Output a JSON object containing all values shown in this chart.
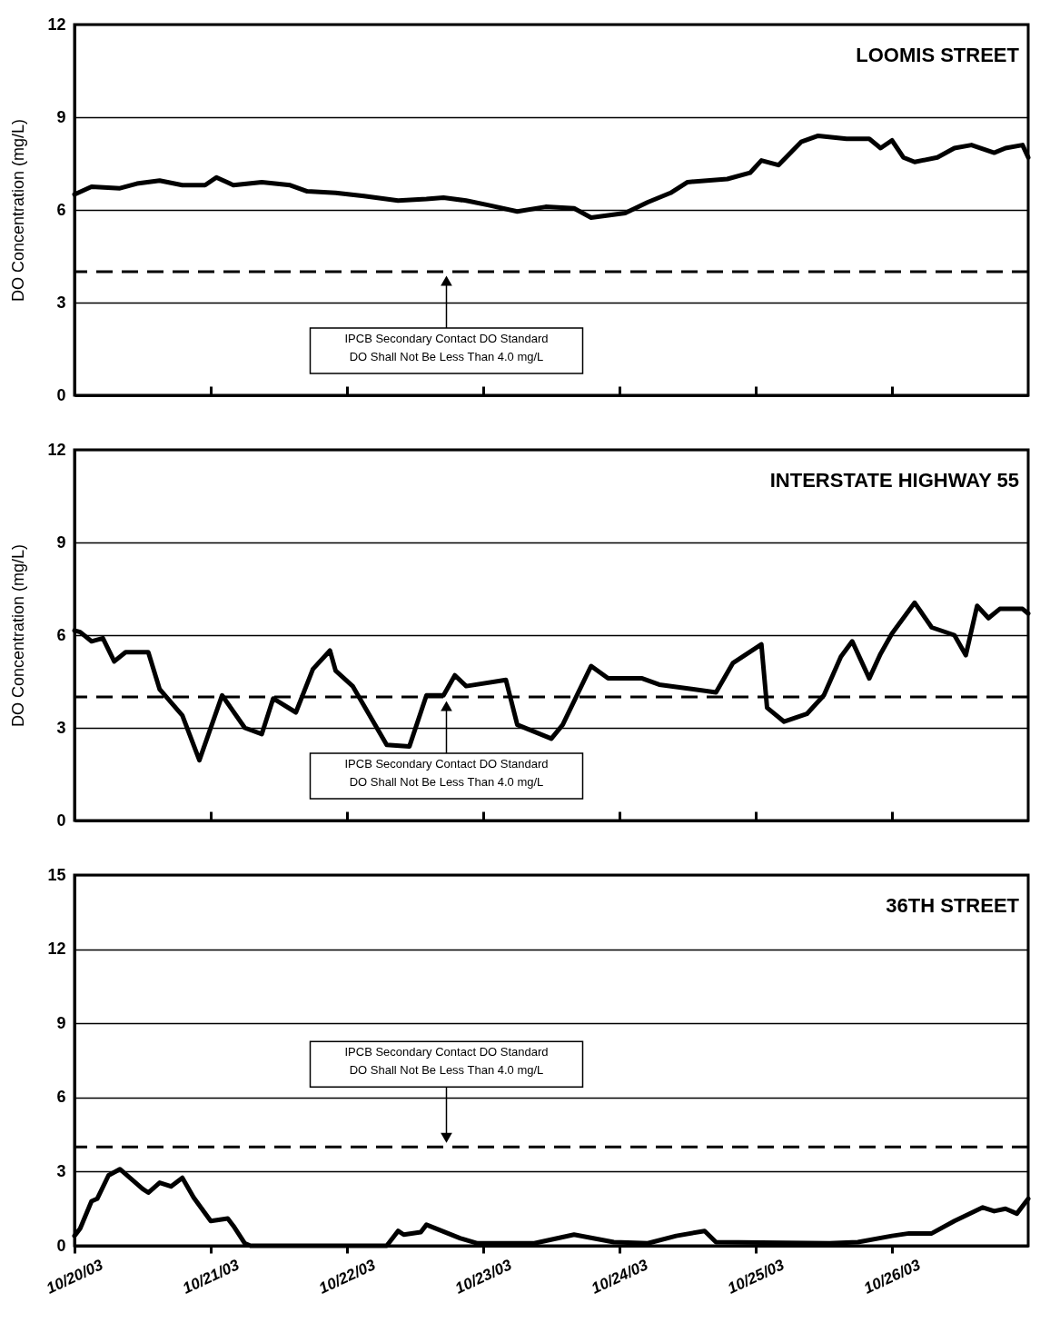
{
  "chart_data": [
    {
      "type": "line",
      "title": "LOOMIS STREET",
      "ylabel": "DO Concentration (mg/L)",
      "xlim": [
        "--10-20",
        "--10-27"
      ],
      "xticks": [
        {
          "value": "--10-20",
          "label": null
        },
        {
          "value": "--10-21",
          "label": null
        },
        {
          "value": "--10-22",
          "label": null
        },
        {
          "value": "--10-23",
          "label": null
        },
        {
          "value": "--10-24",
          "label": null
        },
        {
          "value": "--10-25",
          "label": null
        },
        {
          "value": "--10-26",
          "label": null
        }
      ],
      "ylim": [
        0,
        12
      ],
      "yticks": [
        0,
        3,
        6,
        9,
        12
      ],
      "grid": "y",
      "tick_labels": "y",
      "x": [
        "--10-20T00:00",
        "--10-20T03:00",
        "--10-20T08:00",
        "--10-20T11:00",
        "--10-20T15:00",
        "--10-20T19:00",
        "--10-20T23:00",
        "--10-21T01:00",
        "--10-21T04:00",
        "--10-21T09:00",
        "--10-21T14:00",
        "--10-21T17:00",
        "--10-21T22:00",
        "--10-22T03:00",
        "--10-22T09:00",
        "--10-22T14:00",
        "--10-22T17:00",
        "--10-22T21:00",
        "--10-23T01:00",
        "--10-23T06:00",
        "--10-23T11:00",
        "--10-23T16:00",
        "--10-23T19:00",
        "--10-24T01:00",
        "--10-24T05:00",
        "--10-24T09:00",
        "--10-24T12:00",
        "--10-24T19:00",
        "--10-24T23:00",
        "--10-25T01:00",
        "--10-25T04:00",
        "--10-25T08:00",
        "--10-25T11:00",
        "--10-25T16:00",
        "--10-25T20:00",
        "--10-25T22:00",
        "--10-26T00:00",
        "--10-26T02:00",
        "--10-26T04:00",
        "--10-26T08:00",
        "--10-26T11:00",
        "--10-26T14:00",
        "--10-26T18:00",
        "--10-26T20:00",
        "--10-26T23:00",
        "--10-27T00:00"
      ],
      "series": [
        {
          "color": "#000000",
          "values": [
            6.5,
            6.75,
            6.7,
            6.85,
            6.95,
            6.8,
            6.8,
            7.05,
            6.8,
            6.9,
            6.8,
            6.6,
            6.55,
            6.45,
            6.3,
            6.35,
            6.4,
            6.3,
            6.15,
            5.95,
            6.1,
            6.05,
            5.75,
            5.9,
            6.25,
            6.55,
            6.9,
            7.0,
            7.2,
            7.6,
            7.45,
            8.2,
            8.4,
            8.3,
            8.3,
            8.0,
            8.25,
            7.7,
            7.55,
            7.7,
            8.0,
            8.1,
            7.85,
            8.0,
            8.1,
            7.7
          ]
        }
      ],
      "ref_lines": [
        {
          "axis": "y",
          "value": 4,
          "label": "IPCB Secondary Contact DO Standard\nDO Shall Not Be Less Than 4.0 mg/L",
          "color": "#000000",
          "line_style": "dashed"
        }
      ]
    },
    {
      "type": "line",
      "title": "INTERSTATE HIGHWAY 55",
      "ylabel": "DO Concentration (mg/L)",
      "xlim": [
        "--10-20",
        "--10-27"
      ],
      "xticks": [
        {
          "value": "--10-20",
          "label": null
        },
        {
          "value": "--10-21",
          "label": null
        },
        {
          "value": "--10-22",
          "label": null
        },
        {
          "value": "--10-23",
          "label": null
        },
        {
          "value": "--10-24",
          "label": null
        },
        {
          "value": "--10-25",
          "label": null
        },
        {
          "value": "--10-26",
          "label": null
        }
      ],
      "ylim": [
        0,
        12
      ],
      "yticks": [
        0,
        3,
        6,
        9,
        12
      ],
      "grid": "y",
      "tick_labels": "y",
      "x": [
        "--10-20T00:00",
        "--10-20T01:00",
        "--10-20T03:00",
        "--10-20T05:00",
        "--10-20T07:00",
        "--10-20T09:00",
        "--10-20T13:00",
        "--10-20T15:00",
        "--10-20T19:00",
        "--10-20T22:00",
        "--10-21T02:00",
        "--10-21T06:00",
        "--10-21T09:00",
        "--10-21T11:00",
        "--10-21T15:00",
        "--10-21T18:00",
        "--10-21T21:00",
        "--10-21T22:00",
        "--10-22T01:00",
        "--10-22T07:00",
        "--10-22T11:00",
        "--10-22T14:00",
        "--10-22T17:00",
        "--10-22T19:00",
        "--10-22T21:00",
        "--10-23T04:00",
        "--10-23T06:00",
        "--10-23T12:00",
        "--10-23T14:00",
        "--10-23T19:00",
        "--10-23T22:00",
        "--10-24T04:00",
        "--10-24T07:00",
        "--10-24T13:00",
        "--10-24T17:00",
        "--10-24T20:00",
        "--10-25T01:00",
        "--10-25T02:00",
        "--10-25T05:00",
        "--10-25T09:00",
        "--10-25T12:00",
        "--10-25T15:00",
        "--10-25T17:00",
        "--10-25T20:00",
        "--10-25T22:00",
        "--10-26T00:00",
        "--10-26T04:00",
        "--10-26T07:00",
        "--10-26T11:00",
        "--10-26T13:00",
        "--10-26T15:00",
        "--10-26T17:00",
        "--10-26T19:00",
        "--10-26T23:00",
        "--10-27T00:00"
      ],
      "series": [
        {
          "color": "#000000",
          "values": [
            6.15,
            6.1,
            5.8,
            5.9,
            5.15,
            5.45,
            5.45,
            4.25,
            3.4,
            1.95,
            4.05,
            3.0,
            2.8,
            3.95,
            3.5,
            4.9,
            5.5,
            4.85,
            4.35,
            2.45,
            2.4,
            4.05,
            4.05,
            4.7,
            4.35,
            4.55,
            3.1,
            2.65,
            3.1,
            5.0,
            4.6,
            4.6,
            4.4,
            4.25,
            4.15,
            5.1,
            5.7,
            3.65,
            3.2,
            3.45,
            4.05,
            5.3,
            5.8,
            4.6,
            5.4,
            6.05,
            7.05,
            6.25,
            6.0,
            5.35,
            6.95,
            6.55,
            6.85,
            6.85,
            6.7
          ]
        }
      ],
      "ref_lines": [
        {
          "axis": "y",
          "value": 4,
          "label": "IPCB Secondary Contact DO Standard\nDO Shall Not Be Less Than 4.0 mg/L",
          "color": "#000000",
          "line_style": "dashed"
        }
      ]
    },
    {
      "type": "line",
      "title": "36TH STREET",
      "xlim": [
        "--10-20",
        "--10-27"
      ],
      "xticks": [
        {
          "value": "--10-20",
          "label": "10/20/03"
        },
        {
          "value": "--10-21",
          "label": "10/21/03"
        },
        {
          "value": "--10-22",
          "label": "10/22/03"
        },
        {
          "value": "--10-23",
          "label": "10/23/03"
        },
        {
          "value": "--10-24",
          "label": "10/24/03"
        },
        {
          "value": "--10-25",
          "label": "10/25/03"
        },
        {
          "value": "--10-26",
          "label": "10/26/03"
        }
      ],
      "ylim": [
        0,
        15
      ],
      "yticks": [
        0,
        3,
        6,
        9,
        12,
        15
      ],
      "grid": "y",
      "x": [
        "--10-20T00:00",
        "--10-20T01:00",
        "--10-20T03:00",
        "--10-20T04:00",
        "--10-20T06:00",
        "--10-20T08:00",
        "--10-20T12:00",
        "--10-20T13:00",
        "--10-20T15:00",
        "--10-20T17:00",
        "--10-20T19:00",
        "--10-20T21:00",
        "--10-21T00:00",
        "--10-21T03:00",
        "--10-21T04:00",
        "--10-21T06:00",
        "--10-21T07:00",
        "--10-21T16:00",
        "--10-22T07:00",
        "--10-22T09:00",
        "--10-22T10:00",
        "--10-22T13:00",
        "--10-22T14:00",
        "--10-22T20:00",
        "--10-22T23:00",
        "--10-23T09:00",
        "--10-23T16:00",
        "--10-23T23:00",
        "--10-24T05:00",
        "--10-24T10:00",
        "--10-24T15:00",
        "--10-24T17:00",
        "--10-25T13:00",
        "--10-25T18:00",
        "--10-26T00:00",
        "--10-26T03:00",
        "--10-26T07:00",
        "--10-26T11:00",
        "--10-26T16:00",
        "--10-26T18:00",
        "--10-26T20:00",
        "--10-26T22:00",
        "--10-27T00:00"
      ],
      "series": [
        {
          "color": "#000000",
          "values": [
            0.4,
            0.7,
            1.8,
            1.9,
            2.85,
            3.1,
            2.3,
            2.15,
            2.55,
            2.4,
            2.75,
            1.95,
            1.0,
            1.1,
            0.8,
            0.1,
            0,
            0,
            0,
            0.6,
            0.45,
            0.55,
            0.85,
            0.3,
            0.1,
            0.1,
            0.45,
            0.15,
            0.1,
            0.4,
            0.6,
            0.15,
            0.1,
            0.15,
            0.4,
            0.5,
            0.5,
            1.0,
            1.55,
            1.4,
            1.5,
            1.3,
            1.9
          ]
        }
      ],
      "ref_lines": [
        {
          "axis": "y",
          "value": 4,
          "label": "IPCB Secondary Contact DO Standard\nDO Shall Not Be Less Than 4.0 mg/L",
          "color": "#000000",
          "line_style": "dashed"
        }
      ]
    }
  ]
}
